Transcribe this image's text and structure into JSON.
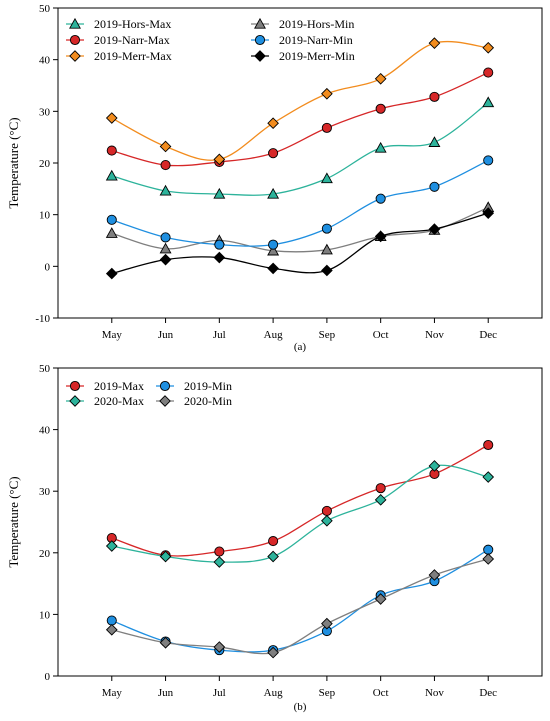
{
  "chart_data": [
    {
      "type": "line",
      "panel_label": "(a)",
      "ylabel": "Temperature (°C)",
      "ylim": [
        -10,
        50
      ],
      "yticks": [
        -10,
        0,
        10,
        20,
        30,
        40,
        50
      ],
      "categories": [
        "May",
        "Jun",
        "Jul",
        "Aug",
        "Sep",
        "Oct",
        "Nov",
        "Dec"
      ],
      "grid": false,
      "legend_position": "top-left",
      "series": [
        {
          "name": "2019-Hors-Max",
          "color": "#2db39b",
          "marker": "triangle",
          "values": [
            17.5,
            14.6,
            14.0,
            14.0,
            17.0,
            22.9,
            24.0,
            31.7
          ]
        },
        {
          "name": "2019-Hors-Min",
          "color": "#7f7f7f",
          "marker": "triangle",
          "values": [
            6.4,
            3.4,
            5.0,
            3.0,
            3.2,
            5.8,
            7.0,
            11.4
          ]
        },
        {
          "name": "2019-Narr-Max",
          "color": "#d62728",
          "marker": "circle",
          "values": [
            22.4,
            19.6,
            20.2,
            21.9,
            26.8,
            30.5,
            32.8,
            37.5
          ]
        },
        {
          "name": "2019-Narr-Min",
          "color": "#1f8fe0",
          "marker": "circle",
          "values": [
            9.0,
            5.6,
            4.2,
            4.2,
            7.3,
            13.1,
            15.4,
            20.5
          ]
        },
        {
          "name": "2019-Merr-Max",
          "color": "#f28c1e",
          "marker": "diamond",
          "values": [
            28.7,
            23.2,
            20.7,
            27.7,
            33.4,
            36.3,
            43.2,
            42.3
          ]
        },
        {
          "name": "2019-Merr-Min",
          "color": "#000000",
          "marker": "diamond",
          "values": [
            -1.4,
            1.3,
            1.7,
            -0.4,
            -0.8,
            5.8,
            7.2,
            10.3
          ]
        }
      ]
    },
    {
      "type": "line",
      "panel_label": "(b)",
      "ylabel": "Temperature (°C)",
      "ylim": [
        0,
        50
      ],
      "yticks": [
        0,
        10,
        20,
        30,
        40,
        50
      ],
      "categories": [
        "May",
        "Jun",
        "Jul",
        "Aug",
        "Sep",
        "Oct",
        "Nov",
        "Dec"
      ],
      "grid": false,
      "legend_position": "top-left",
      "series": [
        {
          "name": "2019-Max",
          "color": "#d62728",
          "marker": "circle",
          "values": [
            22.4,
            19.6,
            20.2,
            21.9,
            26.8,
            30.5,
            32.8,
            37.5
          ]
        },
        {
          "name": "2019-Min",
          "color": "#1f8fe0",
          "marker": "circle",
          "values": [
            9.0,
            5.6,
            4.2,
            4.2,
            7.3,
            13.1,
            15.4,
            20.5
          ]
        },
        {
          "name": "2020-Max",
          "color": "#2db39b",
          "marker": "diamond",
          "values": [
            21.1,
            19.4,
            18.5,
            19.4,
            25.2,
            28.6,
            34.1,
            32.3
          ]
        },
        {
          "name": "2020-Min",
          "color": "#7f7f7f",
          "marker": "diamond",
          "values": [
            7.5,
            5.4,
            4.7,
            3.8,
            8.5,
            12.5,
            16.4,
            19.0
          ]
        }
      ]
    }
  ]
}
